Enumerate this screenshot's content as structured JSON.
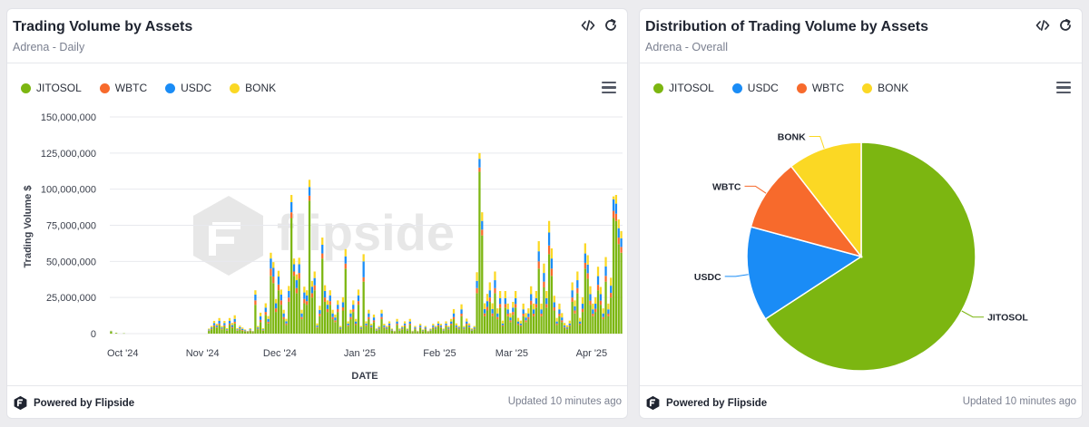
{
  "left": {
    "title": "Trading Volume by Assets",
    "subtitle": "Adrena - Daily",
    "watermark": "flipside",
    "footer_brand": "Powered by Flipside",
    "footer_updated": "Updated 10 minutes ago"
  },
  "right": {
    "title": "Distribution of Trading Volume by Assets",
    "subtitle": "Adrena - Overall",
    "footer_brand": "Powered by Flipside",
    "footer_updated": "Updated 10 minutes ago"
  },
  "icons": [
    "code-icon",
    "refresh-icon",
    "hamburger-menu-icon",
    "flipside-logo-icon"
  ],
  "colors": {
    "JITOSOL": "#7cb611",
    "WBTC": "#f76a2c",
    "USDC": "#1a8cf6",
    "BONK": "#fbd824"
  },
  "chart_data": [
    {
      "type": "bar",
      "stacked": true,
      "xlabel": "DATE",
      "ylabel": "Trading Volume $",
      "ylim": [
        0,
        150000000
      ],
      "yticks": [
        "150,000,000",
        "125,000,000",
        "100,000,000",
        "75,000,000",
        "50,000,000",
        "25,000,000",
        "0"
      ],
      "xticks": [
        "Oct '24",
        "Nov '24",
        "Dec '24",
        "Jan '25",
        "Feb '25",
        "Mar '25",
        "Apr '25"
      ],
      "legend": [
        "JITOSOL",
        "WBTC",
        "USDC",
        "BONK"
      ],
      "legend_position": "top-left",
      "grid": true,
      "start_date": "2024-09-26",
      "series": [
        {
          "name": "JITOSOL",
          "values": [
            1500000,
            0,
            500000,
            0,
            0,
            200000,
            0,
            0,
            0,
            0,
            0,
            0,
            0,
            0,
            0,
            0,
            0,
            0,
            0,
            0,
            0,
            0,
            0,
            0,
            0,
            0,
            0,
            0,
            0,
            0,
            0,
            0,
            0,
            0,
            0,
            0,
            0,
            0,
            2000000,
            3000000,
            5000000,
            4000000,
            6000000,
            3000000,
            5000000,
            2000000,
            6000000,
            4000000,
            7000000,
            2000000,
            3000000,
            2000000,
            1500000,
            1000000,
            2000000,
            1000000,
            20000000,
            3000000,
            8000000,
            2000000,
            13000000,
            7000000,
            40000000,
            35000000,
            15000000,
            30000000,
            20000000,
            10000000,
            6000000,
            22000000,
            80000000,
            40000000,
            28000000,
            38000000,
            10000000,
            21000000,
            20000000,
            92000000,
            25000000,
            30000000,
            4000000,
            12000000,
            52000000,
            22000000,
            15000000,
            20000000,
            10000000,
            8000000,
            15000000,
            3000000,
            16000000,
            45000000,
            5000000,
            10000000,
            15000000,
            6000000,
            20000000,
            3000000,
            36000000,
            5000000,
            10000000,
            4000000,
            8000000,
            2000000,
            3000000,
            10000000,
            4000000,
            3000000,
            5000000,
            2000000,
            1000000,
            6000000,
            2000000,
            3000000,
            5000000,
            2000000,
            6000000,
            1000000,
            3000000,
            1000000,
            4000000,
            1500000,
            3000000,
            1000000,
            2000000,
            4000000,
            3000000,
            5000000,
            4000000,
            2000000,
            5000000,
            3000000,
            6000000,
            10000000,
            4000000,
            3000000,
            12000000,
            3000000,
            6000000,
            4000000,
            2000000,
            3000000,
            28000000,
            112000000,
            68000000,
            12000000,
            16000000,
            22000000,
            12000000,
            28000000,
            10000000,
            18000000,
            5000000,
            18000000,
            12000000,
            8000000,
            13000000,
            18000000,
            6000000,
            5000000,
            12000000,
            8000000,
            10000000,
            20000000,
            12000000,
            18000000,
            45000000,
            12000000,
            32000000,
            18000000,
            55000000,
            40000000,
            16000000,
            6000000,
            12000000,
            8000000,
            4000000,
            3000000,
            5000000,
            22000000,
            14000000,
            28000000,
            6000000,
            15000000,
            45000000,
            38000000,
            20000000,
            12000000,
            15000000,
            30000000,
            20000000,
            10000000,
            36000000,
            12000000,
            25000000,
            80000000,
            78000000,
            62000000,
            56000000
          ],
          "color": "#7cb611"
        },
        {
          "name": "WBTC",
          "values": [
            0,
            0,
            0,
            0,
            0,
            0,
            0,
            0,
            0,
            0,
            0,
            0,
            0,
            0,
            0,
            0,
            0,
            0,
            0,
            0,
            0,
            0,
            0,
            0,
            0,
            0,
            0,
            0,
            0,
            0,
            0,
            0,
            0,
            0,
            0,
            0,
            0,
            0,
            300000,
            500000,
            800000,
            600000,
            1000000,
            500000,
            800000,
            400000,
            1000000,
            700000,
            1200000,
            400000,
            600000,
            500000,
            300000,
            200000,
            400000,
            200000,
            3000000,
            500000,
            1500000,
            400000,
            2000000,
            1200000,
            5000000,
            4500000,
            2500000,
            4000000,
            3000000,
            1500000,
            1000000,
            3000000,
            4000000,
            3000000,
            3500000,
            4000000,
            1500000,
            3000000,
            2500000,
            3500000,
            3000000,
            3500000,
            600000,
            1800000,
            3500000,
            3000000,
            2000000,
            2500000,
            1500000,
            1200000,
            2000000,
            500000,
            2200000,
            3500000,
            800000,
            1500000,
            2000000,
            900000,
            2500000,
            500000,
            3000000,
            800000,
            1500000,
            600000,
            1200000,
            300000,
            500000,
            1500000,
            600000,
            500000,
            800000,
            300000,
            200000,
            900000,
            300000,
            500000,
            800000,
            300000,
            900000,
            200000,
            500000,
            200000,
            600000,
            300000,
            500000,
            200000,
            300000,
            600000,
            500000,
            800000,
            600000,
            300000,
            800000,
            500000,
            900000,
            1500000,
            600000,
            500000,
            1800000,
            500000,
            900000,
            600000,
            300000,
            500000,
            3500000,
            3000000,
            4000000,
            2000000,
            2500000,
            3000000,
            2000000,
            3500000,
            1500000,
            2500000,
            800000,
            2500000,
            1800000,
            1200000,
            2000000,
            2500000,
            900000,
            800000,
            1800000,
            1200000,
            1500000,
            2800000,
            1800000,
            2500000,
            5000000,
            1800000,
            4000000,
            2500000,
            6000000,
            5000000,
            2200000,
            900000,
            1800000,
            1200000,
            600000,
            500000,
            800000,
            3000000,
            2000000,
            3500000,
            900000,
            2200000,
            4000000,
            3800000,
            2800000,
            1800000,
            2200000,
            3800000,
            2800000,
            1500000,
            4000000,
            1800000,
            3200000,
            5000000,
            5000000,
            4500000,
            4000000
          ],
          "color": "#f76a2c"
        },
        {
          "name": "USDC",
          "values": [
            200000,
            0,
            0,
            0,
            0,
            0,
            0,
            0,
            0,
            0,
            0,
            0,
            0,
            0,
            0,
            0,
            0,
            0,
            0,
            0,
            0,
            0,
            0,
            0,
            0,
            0,
            0,
            0,
            0,
            0,
            0,
            0,
            0,
            0,
            0,
            0,
            0,
            0,
            500000,
            800000,
            1500000,
            1000000,
            1800000,
            800000,
            1500000,
            600000,
            1800000,
            1200000,
            2000000,
            600000,
            900000,
            800000,
            500000,
            300000,
            600000,
            300000,
            4000000,
            800000,
            2500000,
            600000,
            3000000,
            2000000,
            7000000,
            6000000,
            3500000,
            5500000,
            4000000,
            2500000,
            1500000,
            4500000,
            7000000,
            5000000,
            5500000,
            6000000,
            2500000,
            4500000,
            4000000,
            6000000,
            4500000,
            5000000,
            1000000,
            2500000,
            6000000,
            4500000,
            3000000,
            4000000,
            2500000,
            2000000,
            3000000,
            800000,
            3500000,
            5000000,
            1200000,
            2500000,
            3000000,
            1500000,
            4000000,
            800000,
            11000000,
            1200000,
            2500000,
            1000000,
            2000000,
            500000,
            800000,
            2500000,
            1000000,
            800000,
            1200000,
            500000,
            300000,
            1500000,
            500000,
            800000,
            1200000,
            500000,
            1500000,
            300000,
            800000,
            300000,
            1000000,
            400000,
            800000,
            300000,
            500000,
            1000000,
            800000,
            1200000,
            1000000,
            500000,
            1200000,
            800000,
            1500000,
            2500000,
            1000000,
            800000,
            3000000,
            800000,
            1500000,
            1000000,
            500000,
            800000,
            5000000,
            6000000,
            6000000,
            3000000,
            4000000,
            5000000,
            3000000,
            5500000,
            2500000,
            4000000,
            1200000,
            4000000,
            3000000,
            2000000,
            3000000,
            4000000,
            1500000,
            1200000,
            3000000,
            2000000,
            2500000,
            4500000,
            3000000,
            4000000,
            7000000,
            3000000,
            6000000,
            4000000,
            9000000,
            7000000,
            3500000,
            1500000,
            3000000,
            2000000,
            1000000,
            800000,
            1200000,
            5000000,
            3000000,
            5500000,
            1500000,
            3500000,
            6500000,
            6000000,
            4500000,
            3000000,
            3500000,
            6000000,
            4500000,
            2500000,
            6500000,
            3000000,
            5000000,
            8000000,
            7000000,
            6500000,
            6000000
          ],
          "color": "#1a8cf6"
        },
        {
          "name": "BONK",
          "values": [
            300000,
            0,
            0,
            0,
            0,
            0,
            0,
            0,
            0,
            0,
            0,
            0,
            0,
            0,
            0,
            0,
            0,
            0,
            0,
            0,
            0,
            0,
            0,
            0,
            0,
            0,
            0,
            0,
            0,
            0,
            0,
            0,
            0,
            0,
            0,
            0,
            0,
            0,
            700000,
            1000000,
            1500000,
            1200000,
            2000000,
            1000000,
            1500000,
            800000,
            2000000,
            1500000,
            2500000,
            800000,
            1000000,
            900000,
            600000,
            400000,
            800000,
            400000,
            3000000,
            1000000,
            2500000,
            800000,
            3000000,
            2000000,
            4000000,
            4000000,
            3000000,
            4000000,
            3500000,
            2500000,
            1800000,
            3500000,
            5000000,
            4000000,
            4000000,
            4500000,
            2500000,
            4000000,
            3500000,
            5000000,
            4000000,
            4500000,
            1500000,
            3000000,
            5000000,
            4000000,
            3000000,
            3500000,
            2500000,
            2000000,
            3000000,
            1000000,
            3500000,
            5000000,
            1500000,
            2500000,
            3000000,
            1800000,
            4000000,
            1000000,
            5000000,
            1500000,
            2500000,
            1200000,
            2000000,
            800000,
            1000000,
            2500000,
            1200000,
            1000000,
            1500000,
            700000,
            500000,
            1800000,
            800000,
            1000000,
            1500000,
            700000,
            1800000,
            500000,
            1000000,
            500000,
            1200000,
            600000,
            1000000,
            500000,
            700000,
            1200000,
            1000000,
            1500000,
            1200000,
            700000,
            1500000,
            1000000,
            1800000,
            3000000,
            1500000,
            1000000,
            3500000,
            1000000,
            2000000,
            1500000,
            800000,
            1000000,
            6000000,
            4000000,
            6000000,
            4000000,
            5000000,
            5500000,
            4000000,
            6000000,
            3500000,
            5000000,
            2000000,
            5000000,
            4000000,
            3000000,
            4000000,
            5000000,
            2500000,
            2000000,
            4000000,
            3000000,
            3500000,
            5500000,
            4000000,
            5000000,
            7000000,
            4000000,
            6500000,
            5000000,
            8000000,
            7000000,
            4500000,
            2500000,
            4000000,
            3000000,
            1800000,
            1500000,
            2000000,
            5500000,
            4000000,
            6000000,
            2500000,
            4500000,
            7000000,
            6500000,
            5500000,
            4000000,
            4500000,
            6500000,
            5000000,
            3500000,
            6500000,
            4000000,
            5500000,
            2000000,
            6000000,
            6000000,
            5000000
          ],
          "color": "#fbd824"
        }
      ]
    },
    {
      "type": "pie",
      "legend": [
        "JITOSOL",
        "USDC",
        "WBTC",
        "BONK"
      ],
      "legend_position": "top-left",
      "categories": [
        "JITOSOL",
        "USDC",
        "WBTC",
        "BONK"
      ],
      "values": [
        65.8,
        13.4,
        10.3,
        10.5
      ],
      "colors": [
        "#7cb611",
        "#1a8cf6",
        "#f76a2c",
        "#fbd824"
      ]
    }
  ]
}
